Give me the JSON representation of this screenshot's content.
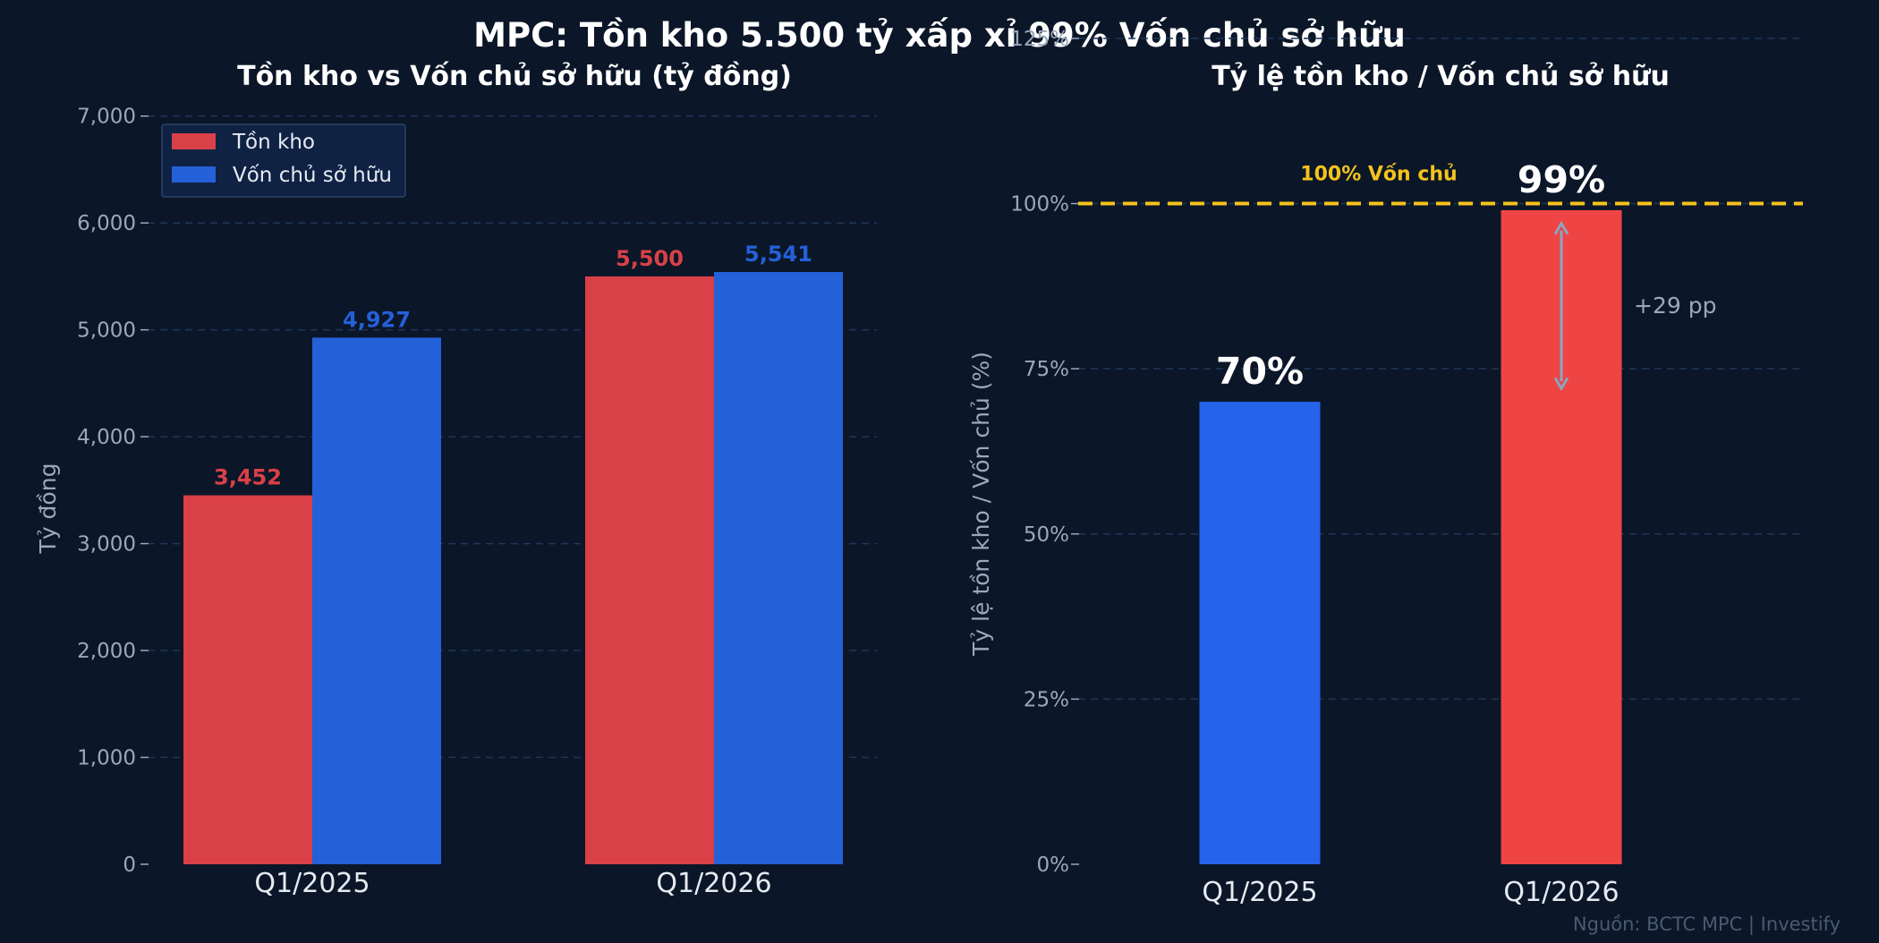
{
  "title": "MPC: Tồn kho 5.500 tỷ xấp xỉ 99% Vốn chủ sở hữu",
  "source": "Nguồn: BCTC MPC  |  Investify",
  "colors": {
    "background": "#0b1628",
    "inventory": "#d94047",
    "equity": "#2460d8",
    "ratio_2025": "#2563eb",
    "ratio_2026": "#ef4444",
    "reference": "#f5c31c",
    "axis_text": "#9aa8bb",
    "grid": "#1f3658",
    "arrow": "#8aa6bf"
  },
  "chart_data": [
    {
      "type": "bar",
      "title": "Tồn kho vs Vốn chủ sở hữu (tỷ đồng)",
      "xlabel": "",
      "ylabel": "Tỷ đồng",
      "categories": [
        "Q1/2025",
        "Q1/2026"
      ],
      "series": [
        {
          "name": "Tồn kho",
          "values": [
            3452,
            5500
          ],
          "labels": [
            "3,452",
            "5,500"
          ]
        },
        {
          "name": "Vốn chủ sở hữu",
          "values": [
            4927,
            5541
          ],
          "labels": [
            "4,927",
            "5,541"
          ]
        }
      ],
      "ylim": [
        0,
        7500
      ],
      "yticks": [
        0,
        1000,
        2000,
        3000,
        4000,
        5000,
        6000,
        7000
      ],
      "ytick_labels": [
        "0",
        "1,000",
        "2,000",
        "3,000",
        "4,000",
        "5,000",
        "6,000",
        "7,000"
      ],
      "grid": true,
      "legend": "top-left"
    },
    {
      "type": "bar",
      "title": "Tỷ lệ tồn kho / Vốn chủ sở hữu",
      "xlabel": "",
      "ylabel": "Tỷ lệ tồn kho / Vốn chủ (%)",
      "categories": [
        "Q1/2025",
        "Q1/2026"
      ],
      "values": [
        70,
        99
      ],
      "labels": [
        "70%",
        "99%"
      ],
      "ylim": [
        0,
        130
      ],
      "yticks": [
        0,
        25,
        50,
        75,
        100,
        125
      ],
      "ytick_labels": [
        "0%",
        "25%",
        "50%",
        "75%",
        "100%",
        "125%"
      ],
      "grid": true,
      "reference_line": {
        "value": 100,
        "label": "100% Vốn chủ"
      },
      "annotation": {
        "from": 72,
        "to": 97,
        "label": "+29 pp"
      }
    }
  ]
}
